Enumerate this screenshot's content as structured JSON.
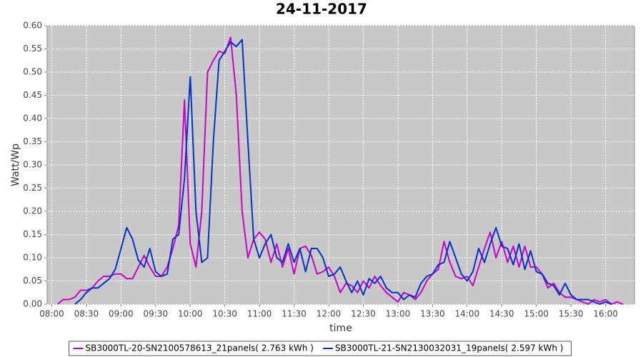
{
  "chart_data": {
    "type": "line",
    "title": "24-11-2017",
    "xlabel": "time",
    "ylabel": "Watt/Wp",
    "x": [
      "08:05",
      "08:10",
      "08:15",
      "08:20",
      "08:25",
      "08:30",
      "08:35",
      "08:40",
      "08:45",
      "08:50",
      "08:55",
      "09:00",
      "09:05",
      "09:10",
      "09:15",
      "09:20",
      "09:25",
      "09:30",
      "09:35",
      "09:40",
      "09:45",
      "09:50",
      "09:55",
      "10:00",
      "10:05",
      "10:10",
      "10:15",
      "10:20",
      "10:25",
      "10:30",
      "10:35",
      "10:40",
      "10:45",
      "10:50",
      "10:55",
      "11:00",
      "11:05",
      "11:10",
      "11:15",
      "11:20",
      "11:25",
      "11:30",
      "11:35",
      "11:40",
      "11:45",
      "11:50",
      "11:55",
      "12:00",
      "12:05",
      "12:10",
      "12:15",
      "12:20",
      "12:25",
      "12:30",
      "12:35",
      "12:40",
      "12:45",
      "12:50",
      "12:55",
      "13:00",
      "13:05",
      "13:10",
      "13:15",
      "13:20",
      "13:25",
      "13:30",
      "13:35",
      "13:40",
      "13:45",
      "13:50",
      "13:55",
      "14:00",
      "14:05",
      "14:10",
      "14:15",
      "14:20",
      "14:25",
      "14:30",
      "14:35",
      "14:40",
      "14:45",
      "14:50",
      "14:55",
      "15:00",
      "15:05",
      "15:10",
      "15:15",
      "15:20",
      "15:25",
      "15:30",
      "15:35",
      "15:40",
      "15:45",
      "15:50",
      "15:55",
      "16:00",
      "16:05",
      "16:10",
      "16:15"
    ],
    "series": [
      {
        "name": "SB3000TL-20-SN2100578613_21panels( 2.763 kWh )",
        "color": "#cc00cc",
        "values": [
          0.0,
          0.01,
          0.01,
          0.015,
          0.03,
          0.03,
          0.035,
          0.05,
          0.06,
          0.06,
          0.065,
          0.065,
          0.055,
          0.055,
          0.08,
          0.105,
          0.08,
          0.06,
          0.06,
          0.08,
          0.12,
          0.17,
          0.44,
          0.13,
          0.08,
          0.2,
          0.5,
          0.525,
          0.545,
          0.54,
          0.575,
          0.45,
          0.2,
          0.1,
          0.14,
          0.155,
          0.14,
          0.09,
          0.13,
          0.08,
          0.12,
          0.065,
          0.12,
          0.125,
          0.105,
          0.065,
          0.07,
          0.08,
          0.06,
          0.025,
          0.045,
          0.04,
          0.025,
          0.05,
          0.035,
          0.06,
          0.04,
          0.025,
          0.015,
          0.005,
          0.025,
          0.02,
          0.01,
          0.025,
          0.05,
          0.065,
          0.075,
          0.135,
          0.09,
          0.06,
          0.055,
          0.06,
          0.04,
          0.08,
          0.12,
          0.155,
          0.1,
          0.135,
          0.09,
          0.125,
          0.08,
          0.125,
          0.08,
          0.08,
          0.065,
          0.035,
          0.045,
          0.025,
          0.015,
          0.015,
          0.01,
          0.005,
          0.0,
          0.01,
          0.005,
          0.01,
          0.0,
          0.005,
          0.0
        ]
      },
      {
        "name": "SB3000TL-21-SN2130032031_19panels( 2.597 kWh )",
        "color": "#0033cc",
        "values": [
          null,
          null,
          null,
          0.0,
          0.01,
          0.025,
          0.035,
          0.035,
          0.045,
          0.055,
          0.075,
          0.12,
          0.165,
          0.14,
          0.095,
          0.08,
          0.12,
          0.07,
          0.06,
          0.065,
          0.14,
          0.15,
          0.27,
          0.49,
          0.2,
          0.09,
          0.1,
          0.35,
          0.525,
          0.545,
          0.565,
          0.555,
          0.57,
          0.35,
          0.14,
          0.1,
          0.13,
          0.15,
          0.1,
          0.09,
          0.13,
          0.09,
          0.12,
          0.07,
          0.12,
          0.12,
          0.1,
          0.06,
          0.065,
          0.08,
          0.05,
          0.025,
          0.05,
          0.02,
          0.055,
          0.045,
          0.06,
          0.035,
          0.025,
          0.025,
          0.01,
          0.02,
          0.015,
          0.045,
          0.06,
          0.065,
          0.085,
          0.09,
          0.135,
          0.1,
          0.065,
          0.05,
          0.07,
          0.12,
          0.09,
          0.13,
          0.165,
          0.125,
          0.12,
          0.085,
          0.13,
          0.075,
          0.115,
          0.07,
          0.065,
          0.045,
          0.04,
          0.02,
          0.045,
          0.02,
          0.01,
          0.01,
          0.01,
          0.005,
          0.0,
          0.005,
          0.0,
          null,
          null
        ]
      }
    ],
    "xlim": [
      "07:56",
      "16:25"
    ],
    "xticks": [
      "08:00",
      "08:30",
      "09:00",
      "09:30",
      "10:00",
      "10:30",
      "11:00",
      "11:30",
      "12:00",
      "12:30",
      "13:00",
      "13:30",
      "14:00",
      "14:30",
      "15:00",
      "15:30",
      "16:00"
    ],
    "ylim": [
      0,
      0.6
    ],
    "yticks": [
      {
        "value": 0,
        "label": "0.00"
      },
      0.05,
      {
        "value": 0.1,
        "label": "0.10"
      },
      0.15,
      {
        "value": 0.2,
        "label": "0.20"
      },
      0.25,
      {
        "value": 0.3,
        "label": "0.30"
      },
      0.35,
      {
        "value": 0.4,
        "label": "0.40"
      },
      0.45,
      {
        "value": 0.5,
        "label": "0.50"
      },
      0.55,
      {
        "value": 0.6,
        "label": "0.60"
      }
    ],
    "grid": true,
    "legend": "bottom"
  }
}
